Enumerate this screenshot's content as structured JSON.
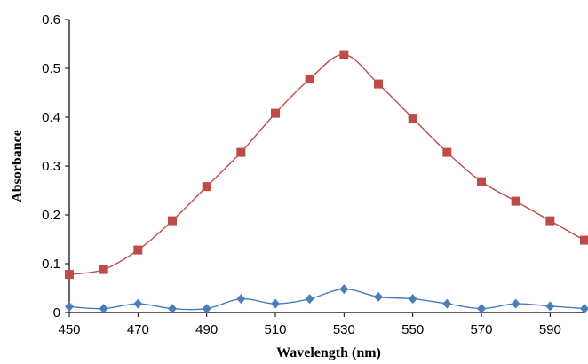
{
  "chart_data": {
    "type": "line",
    "title": "",
    "xlabel": "Wavelength (nm)",
    "ylabel": "Absorbance",
    "xlim": [
      450,
      600
    ],
    "ylim": [
      0,
      0.6
    ],
    "xticks": [
      450,
      470,
      490,
      510,
      530,
      550,
      570,
      590
    ],
    "xtick_labels": [
      "450",
      "470",
      "490",
      "510",
      "530",
      "550",
      "570",
      "590"
    ],
    "yticks": [
      0,
      0.1,
      0.2,
      0.3,
      0.4,
      0.5,
      0.6
    ],
    "ytick_labels": [
      "0",
      "0.1",
      "0.2",
      "0.3",
      "0.4",
      "0.5",
      "0.6"
    ],
    "grid": false,
    "legend": "none",
    "x": [
      450,
      460,
      470,
      480,
      490,
      500,
      510,
      520,
      530,
      540,
      550,
      560,
      570,
      580,
      590,
      600
    ],
    "series": [
      {
        "color": "#4a7ebb",
        "marker": "diamond",
        "values": [
          0.012,
          0.008,
          0.018,
          0.008,
          0.008,
          0.028,
          0.018,
          0.028,
          0.048,
          0.032,
          0.028,
          0.018,
          0.008,
          0.018,
          0.013,
          0.008
        ]
      },
      {
        "color": "#be4b48",
        "marker": "square",
        "values": [
          0.078,
          0.088,
          0.128,
          0.188,
          0.258,
          0.328,
          0.408,
          0.478,
          0.528,
          0.468,
          0.398,
          0.328,
          0.268,
          0.228,
          0.188,
          0.148
        ]
      }
    ]
  }
}
